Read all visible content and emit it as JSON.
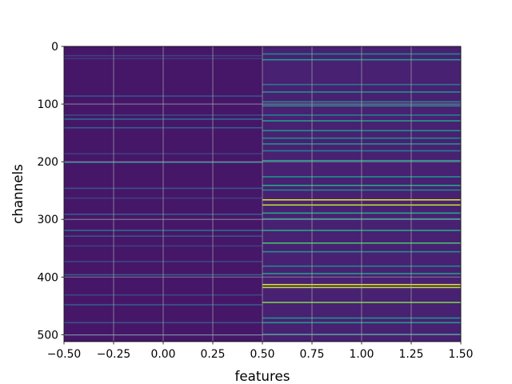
{
  "chart_data": {
    "type": "heatmap",
    "title": "",
    "xlabel": "features",
    "ylabel": "channels",
    "xlim": [
      -0.5,
      1.5
    ],
    "ylim": [
      512,
      0
    ],
    "rows": 512,
    "columns": 2,
    "colormap": "viridis",
    "grid": true,
    "x_ticks": [
      -0.5,
      -0.25,
      0.0,
      0.25,
      0.5,
      0.75,
      1.0,
      1.25,
      1.5
    ],
    "x_tick_labels": [
      "−0.50",
      "−0.25",
      "0.00",
      "0.25",
      "0.50",
      "0.75",
      "1.00",
      "1.25",
      "1.50"
    ],
    "y_ticks": [
      0,
      100,
      200,
      300,
      400,
      500
    ],
    "y_tick_labels": [
      "0",
      "100",
      "200",
      "300",
      "400",
      "500"
    ],
    "columns_data": [
      {
        "feature": 0,
        "base_value": 0.08,
        "stripes": [
          {
            "channel": 15,
            "value": 0.2
          },
          {
            "channel": 20,
            "value": 0.18
          },
          {
            "channel": 85,
            "value": 0.25
          },
          {
            "channel": 118,
            "value": 0.22
          },
          {
            "channel": 125,
            "value": 0.35
          },
          {
            "channel": 140,
            "value": 0.3
          },
          {
            "channel": 185,
            "value": 0.2
          },
          {
            "channel": 200,
            "value": 0.4
          },
          {
            "channel": 245,
            "value": 0.25
          },
          {
            "channel": 262,
            "value": 0.2
          },
          {
            "channel": 290,
            "value": 0.3
          },
          {
            "channel": 318,
            "value": 0.35
          },
          {
            "channel": 328,
            "value": 0.25
          },
          {
            "channel": 345,
            "value": 0.2
          },
          {
            "channel": 372,
            "value": 0.22
          },
          {
            "channel": 395,
            "value": 0.3
          },
          {
            "channel": 430,
            "value": 0.22
          },
          {
            "channel": 447,
            "value": 0.28
          },
          {
            "channel": 478,
            "value": 0.25
          },
          {
            "channel": 500,
            "value": 0.2
          }
        ]
      },
      {
        "feature": 1,
        "base_value": 0.12,
        "stripes": [
          {
            "channel": 12,
            "value": 0.45
          },
          {
            "channel": 22,
            "value": 0.55
          },
          {
            "channel": 65,
            "value": 0.4
          },
          {
            "channel": 78,
            "value": 0.5
          },
          {
            "channel": 95,
            "value": 0.45
          },
          {
            "channel": 102,
            "value": 0.5
          },
          {
            "channel": 118,
            "value": 0.42
          },
          {
            "channel": 128,
            "value": 0.55
          },
          {
            "channel": 145,
            "value": 0.5
          },
          {
            "channel": 158,
            "value": 0.45
          },
          {
            "channel": 168,
            "value": 0.5
          },
          {
            "channel": 180,
            "value": 0.42
          },
          {
            "channel": 197,
            "value": 0.55
          },
          {
            "channel": 225,
            "value": 0.5
          },
          {
            "channel": 240,
            "value": 0.6
          },
          {
            "channel": 248,
            "value": 0.45
          },
          {
            "channel": 265,
            "value": 0.95
          },
          {
            "channel": 274,
            "value": 0.9
          },
          {
            "channel": 288,
            "value": 0.6
          },
          {
            "channel": 298,
            "value": 0.5
          },
          {
            "channel": 318,
            "value": 0.6
          },
          {
            "channel": 340,
            "value": 0.7
          },
          {
            "channel": 355,
            "value": 0.5
          },
          {
            "channel": 380,
            "value": 0.45
          },
          {
            "channel": 393,
            "value": 0.55
          },
          {
            "channel": 412,
            "value": 0.95
          },
          {
            "channel": 417,
            "value": 0.9
          },
          {
            "channel": 443,
            "value": 0.8
          },
          {
            "channel": 470,
            "value": 0.5
          },
          {
            "channel": 478,
            "value": 0.55
          },
          {
            "channel": 498,
            "value": 0.45
          }
        ]
      }
    ]
  }
}
